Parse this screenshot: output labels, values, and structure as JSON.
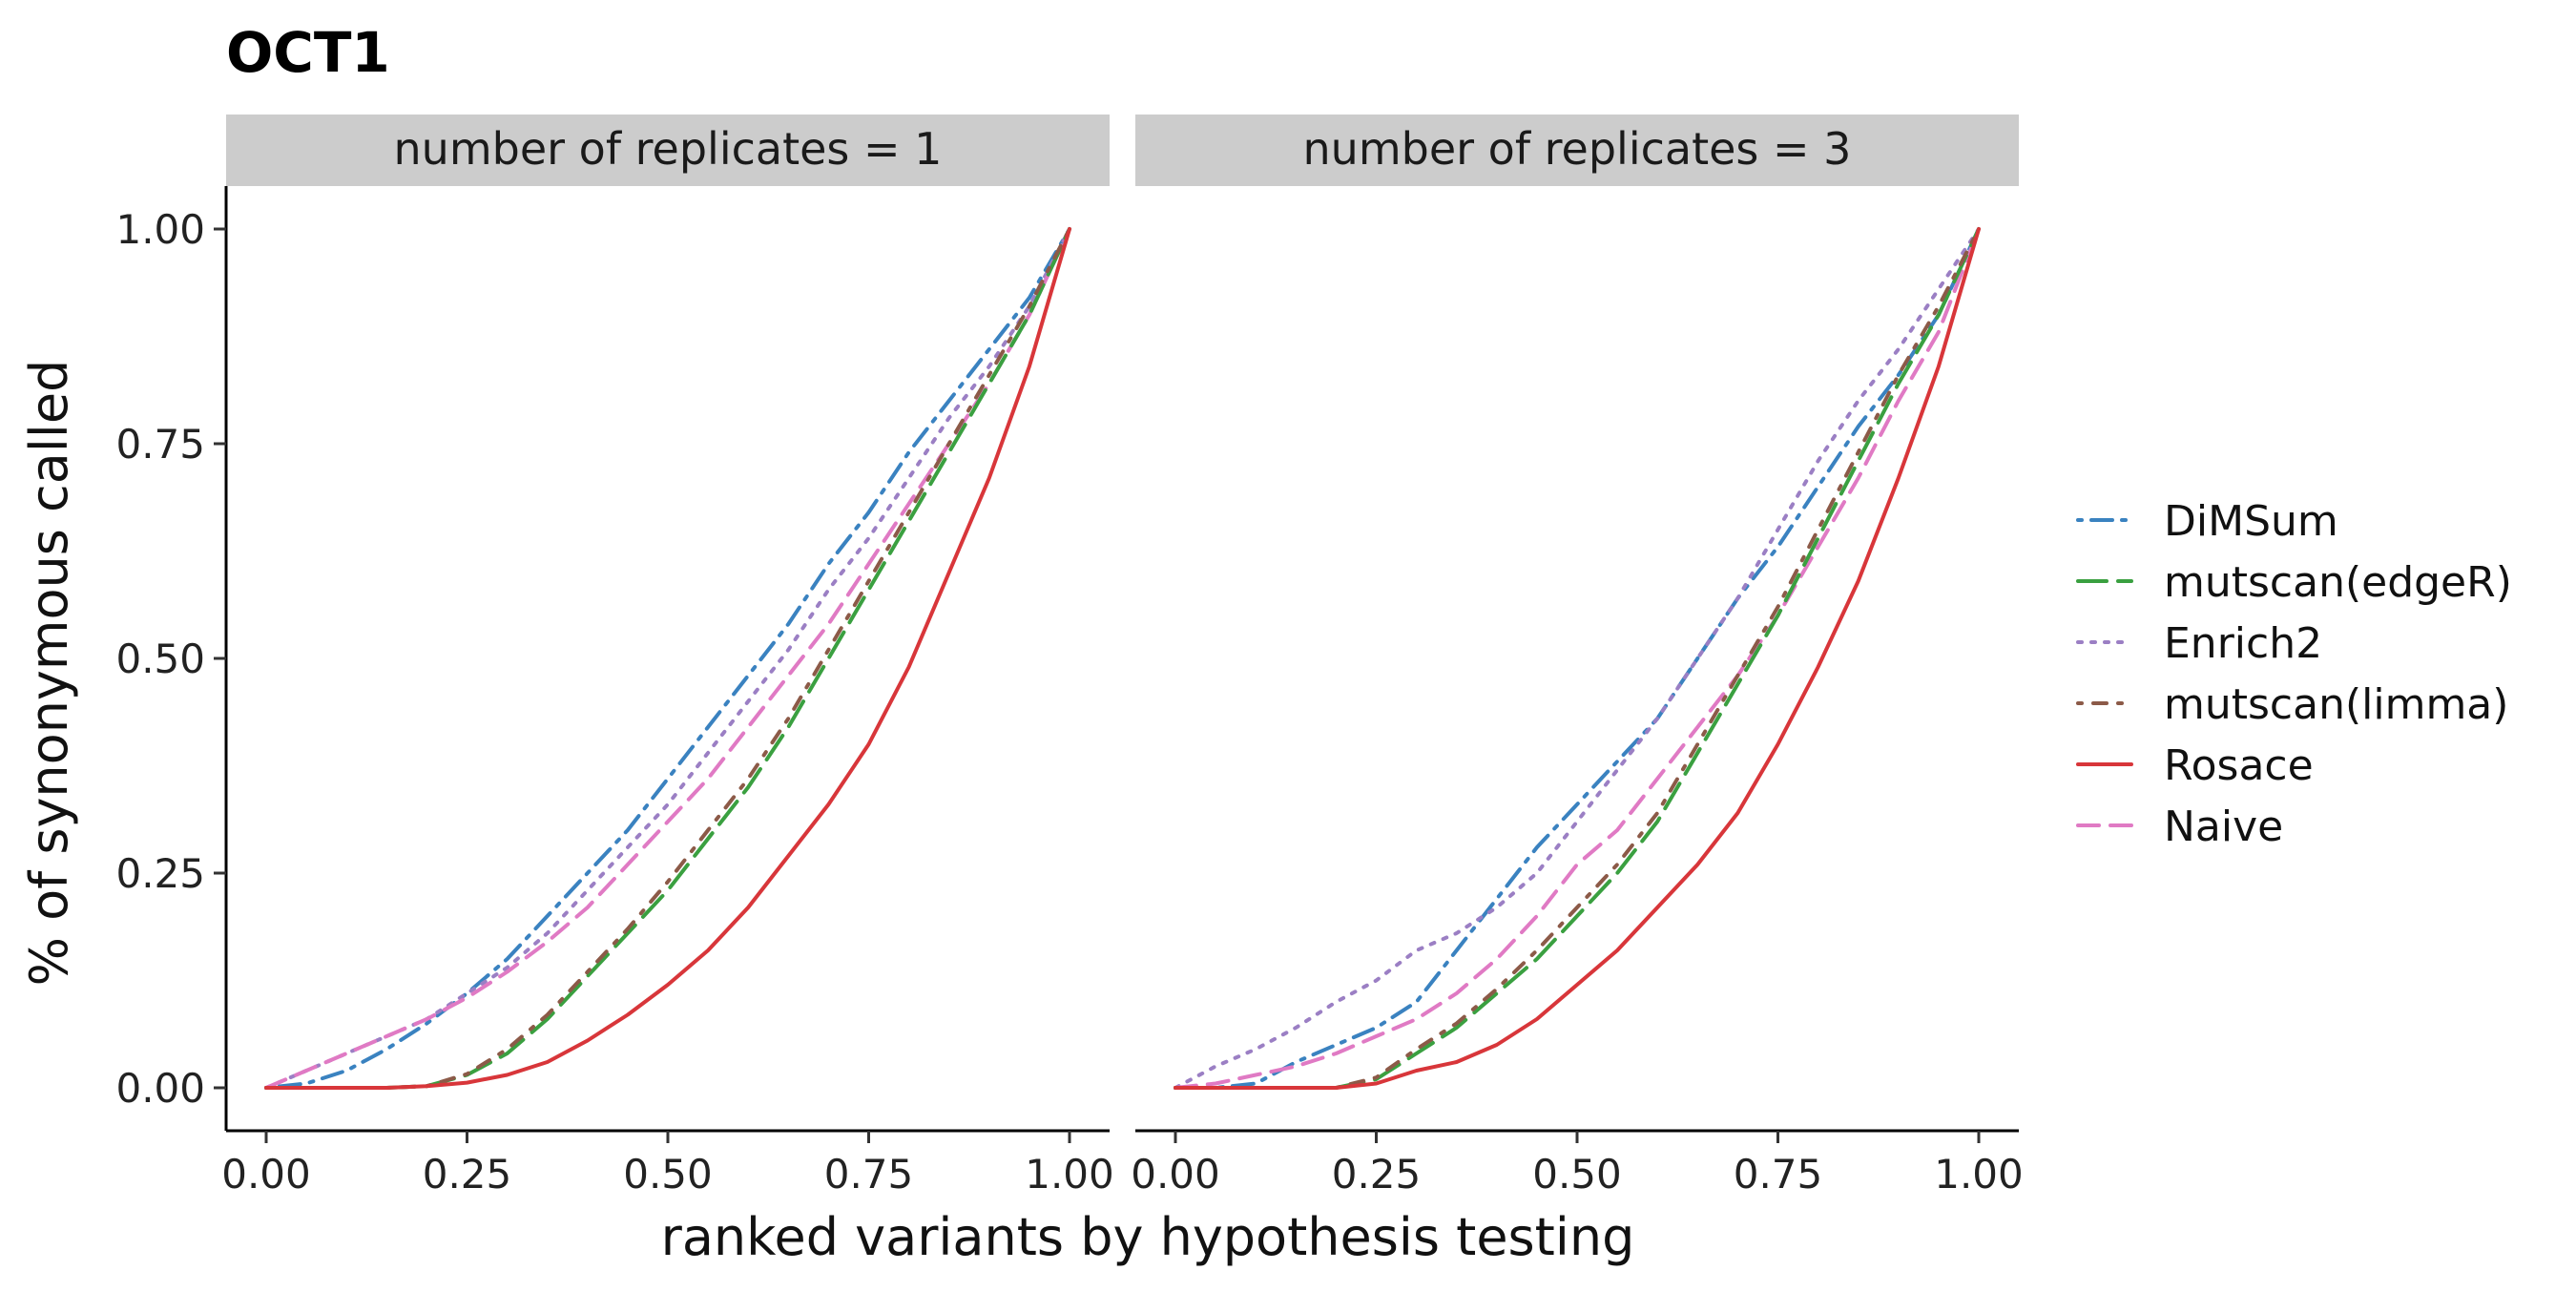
{
  "chart_data": {
    "type": "line",
    "title": "OCT1",
    "xlabel": "ranked variants by hypothesis testing",
    "ylabel": "% of synonymous called",
    "xlim": [
      0,
      1
    ],
    "ylim": [
      0,
      1
    ],
    "x_ticks": [
      "0.00",
      "0.25",
      "0.50",
      "0.75",
      "1.00"
    ],
    "y_ticks": [
      "0.00",
      "0.25",
      "0.50",
      "0.75",
      "1.00"
    ],
    "legend_position": "right",
    "legend": [
      {
        "name": "DiMSum",
        "color": "#3a82c0",
        "dash": "dashdot"
      },
      {
        "name": "mutscan(edgeR)",
        "color": "#3aa040",
        "dash": "longdash"
      },
      {
        "name": "Enrich2",
        "color": "#9b7fc4",
        "dash": "dotted"
      },
      {
        "name": "mutscan(limma)",
        "color": "#8c5a48",
        "dash": "dotdash"
      },
      {
        "name": "Rosace",
        "color": "#d8363a",
        "dash": "solid"
      },
      {
        "name": "Naive",
        "color": "#e07ac4",
        "dash": "dashed"
      }
    ],
    "panels": [
      {
        "label": "number of replicates = 1",
        "series": [
          {
            "name": "DiMSum",
            "x": [
              0,
              0.05,
              0.1,
              0.15,
              0.2,
              0.25,
              0.3,
              0.35,
              0.4,
              0.45,
              0.5,
              0.55,
              0.6,
              0.65,
              0.7,
              0.75,
              0.8,
              0.85,
              0.9,
              0.95,
              1.0
            ],
            "y": [
              0,
              0.005,
              0.02,
              0.045,
              0.075,
              0.11,
              0.15,
              0.2,
              0.25,
              0.3,
              0.36,
              0.42,
              0.48,
              0.54,
              0.61,
              0.67,
              0.74,
              0.8,
              0.86,
              0.92,
              1.0
            ]
          },
          {
            "name": "Enrich2",
            "x": [
              0,
              0.05,
              0.1,
              0.15,
              0.2,
              0.25,
              0.3,
              0.35,
              0.4,
              0.45,
              0.5,
              0.55,
              0.6,
              0.65,
              0.7,
              0.75,
              0.8,
              0.85,
              0.9,
              0.95,
              1.0
            ],
            "y": [
              0,
              0.02,
              0.04,
              0.06,
              0.08,
              0.11,
              0.14,
              0.18,
              0.23,
              0.28,
              0.33,
              0.39,
              0.45,
              0.51,
              0.58,
              0.64,
              0.71,
              0.78,
              0.84,
              0.91,
              1.0
            ]
          },
          {
            "name": "Naive",
            "x": [
              0,
              0.05,
              0.1,
              0.15,
              0.2,
              0.25,
              0.3,
              0.35,
              0.4,
              0.45,
              0.5,
              0.55,
              0.6,
              0.65,
              0.7,
              0.75,
              0.8,
              0.85,
              0.9,
              0.95,
              1.0
            ],
            "y": [
              0,
              0.02,
              0.04,
              0.06,
              0.08,
              0.105,
              0.135,
              0.17,
              0.21,
              0.26,
              0.31,
              0.36,
              0.42,
              0.48,
              0.54,
              0.61,
              0.68,
              0.75,
              0.82,
              0.9,
              1.0
            ]
          },
          {
            "name": "mutscan(edgeR)",
            "x": [
              0,
              0.05,
              0.1,
              0.15,
              0.2,
              0.25,
              0.3,
              0.35,
              0.4,
              0.45,
              0.5,
              0.55,
              0.6,
              0.65,
              0.7,
              0.75,
              0.8,
              0.85,
              0.9,
              0.95,
              1.0
            ],
            "y": [
              0,
              0,
              0,
              0,
              0.002,
              0.015,
              0.04,
              0.08,
              0.13,
              0.18,
              0.23,
              0.29,
              0.35,
              0.42,
              0.5,
              0.58,
              0.66,
              0.74,
              0.82,
              0.9,
              1.0
            ]
          },
          {
            "name": "mutscan(limma)",
            "x": [
              0,
              0.05,
              0.1,
              0.15,
              0.2,
              0.25,
              0.3,
              0.35,
              0.4,
              0.45,
              0.5,
              0.55,
              0.6,
              0.65,
              0.7,
              0.75,
              0.8,
              0.85,
              0.9,
              0.95,
              1.0
            ],
            "y": [
              0,
              0,
              0,
              0,
              0.002,
              0.016,
              0.045,
              0.085,
              0.135,
              0.185,
              0.24,
              0.3,
              0.36,
              0.43,
              0.51,
              0.59,
              0.67,
              0.75,
              0.83,
              0.91,
              1.0
            ]
          },
          {
            "name": "Rosace",
            "x": [
              0,
              0.05,
              0.1,
              0.15,
              0.2,
              0.25,
              0.3,
              0.35,
              0.4,
              0.45,
              0.5,
              0.55,
              0.6,
              0.65,
              0.7,
              0.75,
              0.8,
              0.85,
              0.9,
              0.95,
              1.0
            ],
            "y": [
              0,
              0,
              0,
              0,
              0.002,
              0.006,
              0.015,
              0.03,
              0.055,
              0.085,
              0.12,
              0.16,
              0.21,
              0.27,
              0.33,
              0.4,
              0.49,
              0.6,
              0.71,
              0.84,
              1.0
            ]
          }
        ]
      },
      {
        "label": "number of replicates = 3",
        "series": [
          {
            "name": "DiMSum",
            "x": [
              0,
              0.05,
              0.1,
              0.15,
              0.2,
              0.25,
              0.3,
              0.35,
              0.4,
              0.45,
              0.5,
              0.55,
              0.6,
              0.65,
              0.7,
              0.75,
              0.8,
              0.85,
              0.9,
              0.95,
              1.0
            ],
            "y": [
              0,
              0,
              0.005,
              0.03,
              0.05,
              0.07,
              0.1,
              0.16,
              0.22,
              0.28,
              0.33,
              0.38,
              0.43,
              0.5,
              0.57,
              0.63,
              0.7,
              0.77,
              0.83,
              0.9,
              1.0
            ]
          },
          {
            "name": "Enrich2",
            "x": [
              0,
              0.05,
              0.1,
              0.15,
              0.2,
              0.25,
              0.3,
              0.35,
              0.4,
              0.45,
              0.5,
              0.55,
              0.6,
              0.65,
              0.7,
              0.75,
              0.8,
              0.85,
              0.9,
              0.95,
              1.0
            ],
            "y": [
              0,
              0.025,
              0.045,
              0.07,
              0.1,
              0.125,
              0.16,
              0.18,
              0.21,
              0.25,
              0.31,
              0.37,
              0.43,
              0.5,
              0.57,
              0.65,
              0.73,
              0.8,
              0.86,
              0.93,
              1.0
            ]
          },
          {
            "name": "Naive",
            "x": [
              0,
              0.05,
              0.1,
              0.15,
              0.2,
              0.25,
              0.3,
              0.35,
              0.4,
              0.45,
              0.5,
              0.55,
              0.6,
              0.65,
              0.7,
              0.75,
              0.8,
              0.85,
              0.9,
              0.95,
              1.0
            ],
            "y": [
              0,
              0.005,
              0.015,
              0.025,
              0.04,
              0.06,
              0.08,
              0.11,
              0.15,
              0.2,
              0.26,
              0.3,
              0.36,
              0.42,
              0.48,
              0.55,
              0.63,
              0.71,
              0.8,
              0.88,
              1.0
            ]
          },
          {
            "name": "mutscan(edgeR)",
            "x": [
              0,
              0.05,
              0.1,
              0.15,
              0.2,
              0.25,
              0.3,
              0.35,
              0.4,
              0.45,
              0.5,
              0.55,
              0.6,
              0.65,
              0.7,
              0.75,
              0.8,
              0.85,
              0.9,
              0.95,
              1.0
            ],
            "y": [
              0,
              0,
              0,
              0,
              0,
              0.01,
              0.04,
              0.07,
              0.11,
              0.15,
              0.2,
              0.25,
              0.31,
              0.39,
              0.47,
              0.55,
              0.64,
              0.73,
              0.82,
              0.9,
              1.0
            ]
          },
          {
            "name": "mutscan(limma)",
            "x": [
              0,
              0.05,
              0.1,
              0.15,
              0.2,
              0.25,
              0.3,
              0.35,
              0.4,
              0.45,
              0.5,
              0.55,
              0.6,
              0.65,
              0.7,
              0.75,
              0.8,
              0.85,
              0.9,
              0.95,
              1.0
            ],
            "y": [
              0,
              0,
              0,
              0,
              0,
              0.012,
              0.045,
              0.075,
              0.115,
              0.16,
              0.21,
              0.26,
              0.32,
              0.4,
              0.48,
              0.56,
              0.65,
              0.74,
              0.83,
              0.91,
              1.0
            ]
          },
          {
            "name": "Rosace",
            "x": [
              0,
              0.05,
              0.1,
              0.15,
              0.2,
              0.25,
              0.3,
              0.35,
              0.4,
              0.45,
              0.5,
              0.55,
              0.6,
              0.65,
              0.7,
              0.75,
              0.8,
              0.85,
              0.9,
              0.95,
              1.0
            ],
            "y": [
              0,
              0,
              0,
              0,
              0,
              0.005,
              0.02,
              0.03,
              0.05,
              0.08,
              0.12,
              0.16,
              0.21,
              0.26,
              0.32,
              0.4,
              0.49,
              0.59,
              0.71,
              0.84,
              1.0
            ]
          }
        ]
      }
    ]
  }
}
